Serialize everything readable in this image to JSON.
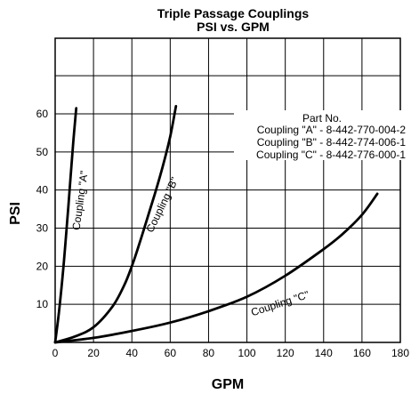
{
  "chart_data": {
    "type": "line",
    "title": "Triple Passage Couplings",
    "subtitle": "PSI vs. GPM",
    "xlabel": "GPM",
    "ylabel": "PSI",
    "xlim": [
      0,
      180
    ],
    "ylim": [
      0,
      60
    ],
    "x_ticks": [
      0,
      20,
      40,
      60,
      80,
      100,
      120,
      140,
      160,
      180
    ],
    "y_ticks": [
      10,
      20,
      30,
      40,
      50,
      60
    ],
    "grid": true,
    "series": [
      {
        "name": "Coupling \"A\"",
        "label": "Coupling \"A\"",
        "x": [
          0,
          2,
          4,
          6,
          8,
          9.5,
          11
        ],
        "y": [
          0,
          8,
          18,
          30,
          43,
          53,
          61.5
        ]
      },
      {
        "name": "Coupling \"B\"",
        "label": "Coupling \"B\"",
        "x": [
          0,
          10,
          20,
          30,
          36,
          40,
          44,
          48,
          52,
          56,
          60,
          63
        ],
        "y": [
          0,
          1.5,
          4,
          9.5,
          15,
          20,
          26,
          32.5,
          39,
          46,
          54,
          62
        ]
      },
      {
        "name": "Coupling \"C\"",
        "label": "Coupling \"C\"",
        "x": [
          0,
          20,
          40,
          60,
          80,
          100,
          120,
          140,
          150,
          160,
          168
        ],
        "y": [
          0,
          1.2,
          3,
          5.2,
          8.2,
          12,
          17.5,
          24.5,
          28.5,
          33.5,
          39
        ]
      }
    ],
    "annotation": {
      "heading": "Part No.",
      "lines": [
        "Coupling \"A\" - 8-442-770-004-2",
        "Coupling \"B\" - 8-442-774-006-1",
        "Coupling \"C\" - 8-442-776-000-1"
      ]
    }
  }
}
